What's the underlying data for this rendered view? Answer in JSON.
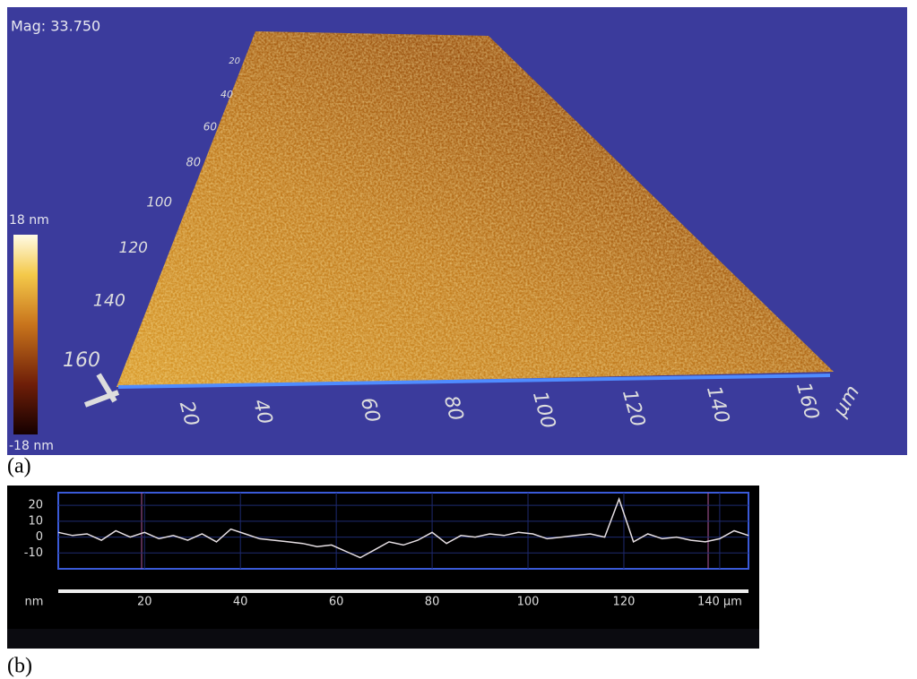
{
  "panel_a": {
    "label": "(a)",
    "magnification": "Mag: 33.750",
    "scale_max": "18 nm",
    "scale_min": "-18 nm",
    "x_ticks": [
      20,
      40,
      60,
      80,
      100,
      120,
      140,
      160
    ],
    "x_unit": "µm",
    "y_ticks": [
      20,
      40,
      60,
      80,
      100,
      120,
      140,
      160
    ]
  },
  "panel_b_label": "(b)",
  "chart_data": {
    "type": "line",
    "y_label": "nm",
    "color": "#e6dfe3",
    "grid": true,
    "xlim": [
      2,
      146
    ],
    "ylim": [
      -20,
      28
    ],
    "xticks": [
      20,
      40,
      60,
      80,
      100,
      120,
      {
        "value": 140,
        "label": "140 µm"
      }
    ],
    "yticks": [
      20,
      10,
      0,
      -10
    ],
    "x": [
      2,
      5,
      8,
      11,
      14,
      17,
      20,
      23,
      26,
      29,
      32,
      35,
      38,
      41,
      44,
      47,
      50,
      53,
      56,
      59,
      62,
      65,
      68,
      71,
      74,
      77,
      80,
      83,
      86,
      89,
      92,
      95,
      98,
      101,
      104,
      107,
      110,
      113,
      116,
      119,
      122,
      125,
      128,
      131,
      134,
      137,
      140,
      143,
      146
    ],
    "series": [
      {
        "values": [
          3,
          1,
          2,
          -2,
          4,
          0,
          3,
          -1,
          1,
          -2,
          2,
          -3,
          5,
          2,
          -1,
          -2,
          -3,
          -4,
          -6,
          -5,
          -9,
          -13,
          -8,
          -3,
          -5,
          -2,
          3,
          -4,
          1,
          0,
          2,
          1,
          3,
          2,
          -1,
          0,
          1,
          2,
          0,
          24,
          -3,
          2,
          -1,
          0,
          -2,
          -3,
          -1,
          4,
          1
        ]
      }
    ]
  }
}
